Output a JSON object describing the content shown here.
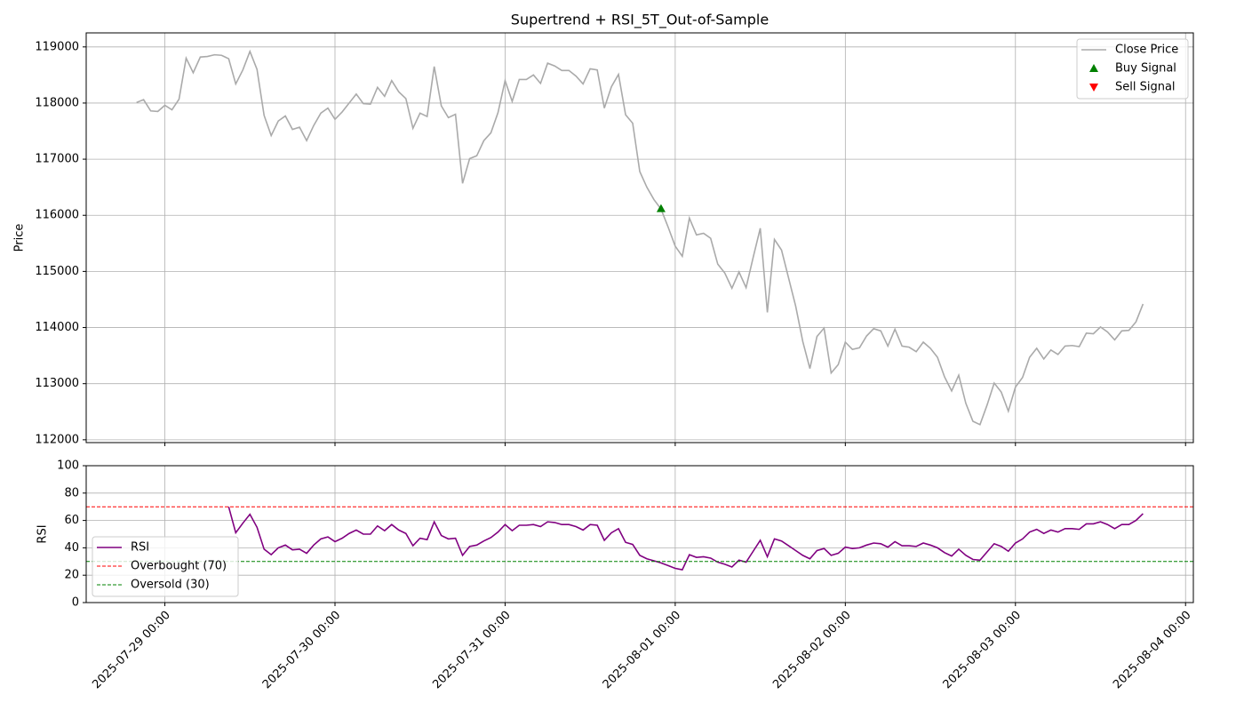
{
  "chart_data": {
    "type": "line",
    "title": "Supertrend + RSI_5T_Out-of-Sample",
    "x": [
      "2025-07-28 20:00",
      "2025-07-28 21:00",
      "2025-07-28 22:00",
      "2025-07-28 23:00",
      "2025-07-29 00:00",
      "2025-07-29 01:00",
      "2025-07-29 02:00",
      "2025-07-29 03:00",
      "2025-07-29 04:00",
      "2025-07-29 05:00",
      "2025-07-29 06:00",
      "2025-07-29 07:00",
      "2025-07-29 08:00",
      "2025-07-29 09:00",
      "2025-07-29 10:00",
      "2025-07-29 11:00",
      "2025-07-29 12:00",
      "2025-07-29 13:00",
      "2025-07-29 14:00",
      "2025-07-29 15:00",
      "2025-07-29 16:00",
      "2025-07-29 17:00",
      "2025-07-29 18:00",
      "2025-07-29 19:00",
      "2025-07-29 20:00",
      "2025-07-29 21:00",
      "2025-07-29 22:00",
      "2025-07-29 23:00",
      "2025-07-30 00:00",
      "2025-07-30 01:00",
      "2025-07-30 02:00",
      "2025-07-30 03:00",
      "2025-07-30 04:00",
      "2025-07-30 05:00",
      "2025-07-30 06:00",
      "2025-07-30 07:00",
      "2025-07-30 08:00",
      "2025-07-30 09:00",
      "2025-07-30 10:00",
      "2025-07-30 11:00",
      "2025-07-30 12:00",
      "2025-07-30 13:00",
      "2025-07-30 14:00",
      "2025-07-30 15:00",
      "2025-07-30 16:00",
      "2025-07-30 17:00",
      "2025-07-30 18:00",
      "2025-07-30 19:00",
      "2025-07-30 20:00",
      "2025-07-30 21:00",
      "2025-07-30 22:00",
      "2025-07-30 23:00",
      "2025-07-31 00:00",
      "2025-07-31 01:00",
      "2025-07-31 02:00",
      "2025-07-31 03:00",
      "2025-07-31 04:00",
      "2025-07-31 05:00",
      "2025-07-31 06:00",
      "2025-07-31 07:00",
      "2025-07-31 08:00",
      "2025-07-31 09:00",
      "2025-07-31 10:00",
      "2025-07-31 11:00",
      "2025-07-31 12:00",
      "2025-07-31 13:00",
      "2025-07-31 14:00",
      "2025-07-31 15:00",
      "2025-07-31 16:00",
      "2025-07-31 17:00",
      "2025-07-31 18:00",
      "2025-07-31 19:00",
      "2025-07-31 20:00",
      "2025-07-31 21:00",
      "2025-07-31 22:00",
      "2025-07-31 23:00",
      "2025-08-01 00:00",
      "2025-08-01 01:00",
      "2025-08-01 02:00",
      "2025-08-01 03:00",
      "2025-08-01 04:00",
      "2025-08-01 05:00",
      "2025-08-01 06:00",
      "2025-08-01 07:00",
      "2025-08-01 08:00",
      "2025-08-01 09:00",
      "2025-08-01 10:00",
      "2025-08-01 11:00",
      "2025-08-01 12:00",
      "2025-08-01 13:00",
      "2025-08-01 14:00",
      "2025-08-01 15:00",
      "2025-08-01 16:00",
      "2025-08-01 17:00",
      "2025-08-01 18:00",
      "2025-08-01 19:00",
      "2025-08-01 20:00",
      "2025-08-01 21:00",
      "2025-08-01 22:00",
      "2025-08-01 23:00",
      "2025-08-02 00:00",
      "2025-08-02 01:00",
      "2025-08-02 02:00",
      "2025-08-02 03:00",
      "2025-08-02 04:00",
      "2025-08-02 05:00",
      "2025-08-02 06:00",
      "2025-08-02 07:00",
      "2025-08-02 08:00",
      "2025-08-02 09:00",
      "2025-08-02 10:00",
      "2025-08-02 11:00",
      "2025-08-02 12:00",
      "2025-08-02 13:00",
      "2025-08-02 14:00",
      "2025-08-02 15:00",
      "2025-08-02 16:00",
      "2025-08-02 17:00",
      "2025-08-02 18:00",
      "2025-08-02 19:00",
      "2025-08-02 20:00",
      "2025-08-02 21:00",
      "2025-08-02 22:00",
      "2025-08-02 23:00",
      "2025-08-03 00:00",
      "2025-08-03 01:00",
      "2025-08-03 02:00",
      "2025-08-03 03:00",
      "2025-08-03 04:00",
      "2025-08-03 05:00",
      "2025-08-03 06:00",
      "2025-08-03 07:00",
      "2025-08-03 08:00",
      "2025-08-03 09:00",
      "2025-08-03 10:00",
      "2025-08-03 11:00",
      "2025-08-03 12:00",
      "2025-08-03 13:00",
      "2025-08-03 14:00",
      "2025-08-03 15:00",
      "2025-08-03 16:00",
      "2025-08-03 17:00",
      "2025-08-03 18:00"
    ],
    "xlim": [
      "2025-07-28 12:54",
      "2025-08-04 01:06"
    ],
    "xticks": [
      "2025-07-29 00:00",
      "2025-07-30 00:00",
      "2025-07-31 00:00",
      "2025-08-01 00:00",
      "2025-08-02 00:00",
      "2025-08-03 00:00",
      "2025-08-04 00:00"
    ],
    "panels": [
      {
        "ylabel": "Price",
        "ylim": [
          111950,
          119250
        ],
        "yticks": [
          112000,
          113000,
          114000,
          115000,
          116000,
          117000,
          118000,
          119000
        ],
        "grid": true,
        "legend": "upper right",
        "series": [
          {
            "name": "Close Price",
            "color": "#aaaaaa",
            "values": [
              118010,
              118060,
              117860,
              117850,
              117960,
              117880,
              118070,
              118800,
              118540,
              118820,
              118830,
              118860,
              118850,
              118790,
              118340,
              118590,
              118920,
              118600,
              117780,
              117420,
              117680,
              117770,
              117530,
              117570,
              117330,
              117600,
              117820,
              117910,
              117710,
              117840,
              118000,
              118160,
              117990,
              117980,
              118280,
              118120,
              118400,
              118200,
              118080,
              117550,
              117820,
              117760,
              118650,
              117950,
              117740,
              117800,
              116570,
              117010,
              117060,
              117330,
              117470,
              117830,
              118400,
              118030,
              118420,
              118420,
              118500,
              118350,
              118710,
              118660,
              118580,
              118580,
              118480,
              118340,
              118610,
              118590,
              117910,
              118290,
              118510,
              117790,
              117640,
              116780,
              116500,
              116280,
              116110,
              115790,
              115450,
              115270,
              115950,
              115650,
              115680,
              115590,
              115130,
              114970,
              114700,
              114990,
              114710,
              115250,
              115770,
              114270,
              115570,
              115380,
              114880,
              114380,
              113750,
              113270,
              113840,
              113990,
              113190,
              113340,
              113740,
              113610,
              113640,
              113850,
              113980,
              113940,
              113670,
              113970,
              113670,
              113650,
              113570,
              113740,
              113630,
              113470,
              113120,
              112870,
              113150,
              112650,
              112330,
              112270,
              112620,
              113010,
              112850,
              112510,
              112940,
              113110,
              113470,
              113630,
              113440,
              113600,
              113520,
              113670,
              113680,
              113660,
              113900,
              113890,
              114010,
              113920,
              113780,
              113940,
              113950,
              114100,
              114420
            ]
          },
          {
            "name": "Buy Signal",
            "color": "green",
            "marker": "^",
            "x": [
              "2025-07-31 22:00"
            ],
            "values": [
              116120
            ]
          },
          {
            "name": "Sell Signal",
            "color": "red",
            "marker": "v",
            "x": [],
            "values": []
          }
        ]
      },
      {
        "ylabel": "RSI",
        "ylim": [
          0,
          100
        ],
        "yticks": [
          0,
          20,
          40,
          60,
          80,
          100
        ],
        "grid": true,
        "legend": "lower left",
        "series": [
          {
            "name": "RSI",
            "color": "purple",
            "values": [
              null,
              null,
              null,
              null,
              null,
              null,
              null,
              null,
              null,
              null,
              null,
              null,
              null,
              70,
              51,
              58,
              64.5,
              55,
              39,
              35,
              40,
              42,
              38.5,
              39,
              36,
              42,
              46.5,
              48,
              44.5,
              47,
              50.5,
              53,
              50,
              50,
              56,
              52.5,
              57,
              53,
              50.5,
              41.5,
              47,
              46,
              59,
              49,
              46.5,
              47,
              34.5,
              41,
              42,
              45,
              47.5,
              51.5,
              57,
              52.5,
              56.5,
              56.5,
              57,
              55.5,
              59,
              58.5,
              57,
              57,
              55.5,
              53,
              57,
              56.5,
              45.5,
              51,
              54,
              44,
              42.5,
              34.5,
              32,
              30.5,
              29,
              27,
              25,
              24,
              35,
              33,
              33.5,
              32.5,
              29.5,
              28,
              26,
              31,
              29.5,
              37.5,
              45.5,
              33.5,
              46.5,
              45,
              41.5,
              38,
              34.5,
              32,
              38,
              39.5,
              34.5,
              36,
              40.5,
              39.5,
              40,
              42,
              43.5,
              43,
              40.5,
              44.5,
              41.5,
              41.5,
              41,
              43.5,
              42,
              40,
              36.5,
              34,
              39,
              34.5,
              31.5,
              31,
              37,
              43,
              41,
              37.5,
              43.5,
              46.5,
              51.5,
              53.5,
              50.5,
              53,
              51.5,
              54,
              54,
              53.5,
              57.5,
              57.5,
              59,
              57,
              54,
              57,
              57,
              60,
              65
            ]
          },
          {
            "name": "Overbought (70)",
            "color": "red",
            "dash": true,
            "hline": 70
          },
          {
            "name": "Oversold (30)",
            "color": "green",
            "dash": true,
            "hline": 30
          }
        ]
      }
    ]
  }
}
